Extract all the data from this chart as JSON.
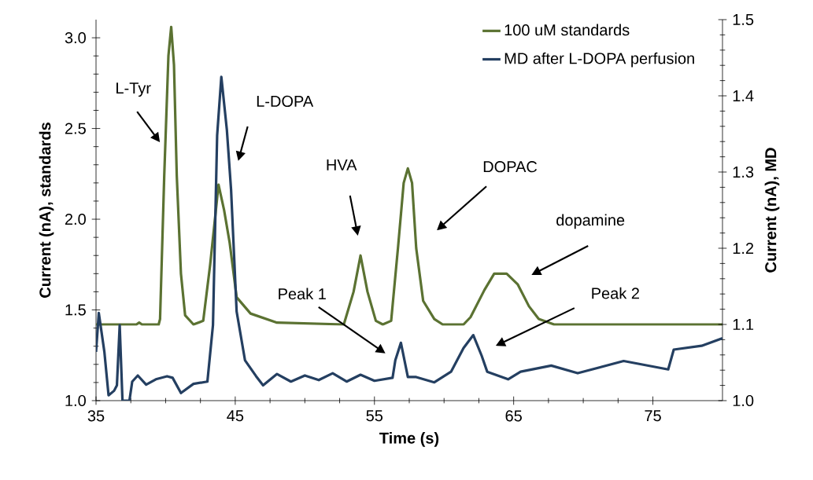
{
  "chart_data": {
    "type": "line",
    "xlabel": "Time (s)",
    "ylabel": "Current (nA), standards",
    "y2label": "Current (nA), MD",
    "xlim": [
      35,
      80
    ],
    "xticks": [
      35,
      45,
      55,
      65,
      75
    ],
    "ylim": [
      1.0,
      3.1
    ],
    "yticks": [
      {
        "value": 1.0,
        "label": "1.0"
      },
      {
        "value": 1.5,
        "label": "1.5"
      },
      {
        "value": 2.0,
        "label": "2.0"
      },
      {
        "value": 2.5,
        "label": "2.5"
      },
      {
        "value": 3.0,
        "label": "3.0"
      }
    ],
    "y2lim": [
      1.0,
      1.5
    ],
    "y2ticks": [
      {
        "value": 1.0,
        "label": "1.0"
      },
      {
        "value": 1.1,
        "label": "1.1"
      },
      {
        "value": 1.2,
        "label": "1.2"
      },
      {
        "value": 1.3,
        "label": "1.3"
      },
      {
        "value": 1.4,
        "label": "1.4"
      },
      {
        "value": 1.5,
        "label": "1.5"
      }
    ],
    "legend": "top right",
    "grid": false,
    "series": [
      {
        "name": "100 uM standards",
        "color": "#5b7232",
        "x": [
          35,
          37.9,
          38.1,
          38.3,
          39.5,
          39.6,
          39.9,
          40.2,
          40.4,
          40.6,
          40.8,
          41.1,
          41.4,
          42.0,
          42.7,
          43.2,
          43.8,
          44.2,
          44.6,
          45.1,
          46.1,
          48.0,
          52.8,
          53.5,
          54.0,
          54.5,
          55.1,
          55.6,
          56.2,
          56.7,
          57.1,
          57.4,
          57.7,
          58.0,
          58.5,
          59.3,
          59.9,
          61.4,
          61.9,
          62.9,
          63.6,
          64.5,
          65.3,
          66.1,
          66.8,
          67.9,
          80
        ],
        "values": [
          1.42,
          1.42,
          1.43,
          1.42,
          1.42,
          1.45,
          2.24,
          2.9,
          3.06,
          2.85,
          2.24,
          1.7,
          1.47,
          1.42,
          1.44,
          1.75,
          2.19,
          2.05,
          1.87,
          1.57,
          1.48,
          1.43,
          1.42,
          1.6,
          1.8,
          1.6,
          1.44,
          1.42,
          1.44,
          1.85,
          2.2,
          2.28,
          2.2,
          1.84,
          1.55,
          1.45,
          1.42,
          1.42,
          1.46,
          1.61,
          1.7,
          1.7,
          1.64,
          1.52,
          1.45,
          1.42,
          1.42
        ]
      },
      {
        "name": "MD after L-DOPA perfusion",
        "color": "#243f61",
        "axis": "y2",
        "x": [
          35.0,
          35.2,
          35.6,
          35.9,
          36.3,
          36.5,
          36.7,
          36.9,
          37.4,
          37.6,
          38.0,
          38.6,
          39.3,
          40.1,
          40.5,
          41.1,
          42.0,
          43.0,
          43.4,
          43.7,
          44.0,
          44.4,
          44.7,
          45.1,
          45.7,
          46.5,
          47,
          48,
          49,
          50,
          51,
          52,
          53,
          54,
          55,
          56.3,
          56.5,
          56.9,
          57.4,
          58.0,
          59.3,
          60.5,
          61.4,
          62.1,
          62.7,
          63.1,
          64.6,
          65.5,
          67.7,
          69.6,
          72.9,
          76.1,
          76.5,
          78.5,
          80
        ],
        "values": [
          1.064,
          1.115,
          1.064,
          1.007,
          1.013,
          1.02,
          1.099,
          1.0,
          1.0,
          1.025,
          1.033,
          1.021,
          1.028,
          1.032,
          1.03,
          1.01,
          1.022,
          1.025,
          1.099,
          1.348,
          1.425,
          1.355,
          1.277,
          1.117,
          1.053,
          1.032,
          1.02,
          1.035,
          1.025,
          1.033,
          1.027,
          1.036,
          1.025,
          1.034,
          1.026,
          1.03,
          1.053,
          1.076,
          1.031,
          1.031,
          1.024,
          1.038,
          1.069,
          1.086,
          1.059,
          1.038,
          1.028,
          1.038,
          1.046,
          1.036,
          1.052,
          1.041,
          1.067,
          1.072,
          1.082
        ]
      }
    ],
    "annotations": [
      "L-Tyr",
      "L-DOPA",
      "HVA",
      "DOPAC",
      "dopamine",
      "Peak 1",
      "Peak 2"
    ]
  }
}
